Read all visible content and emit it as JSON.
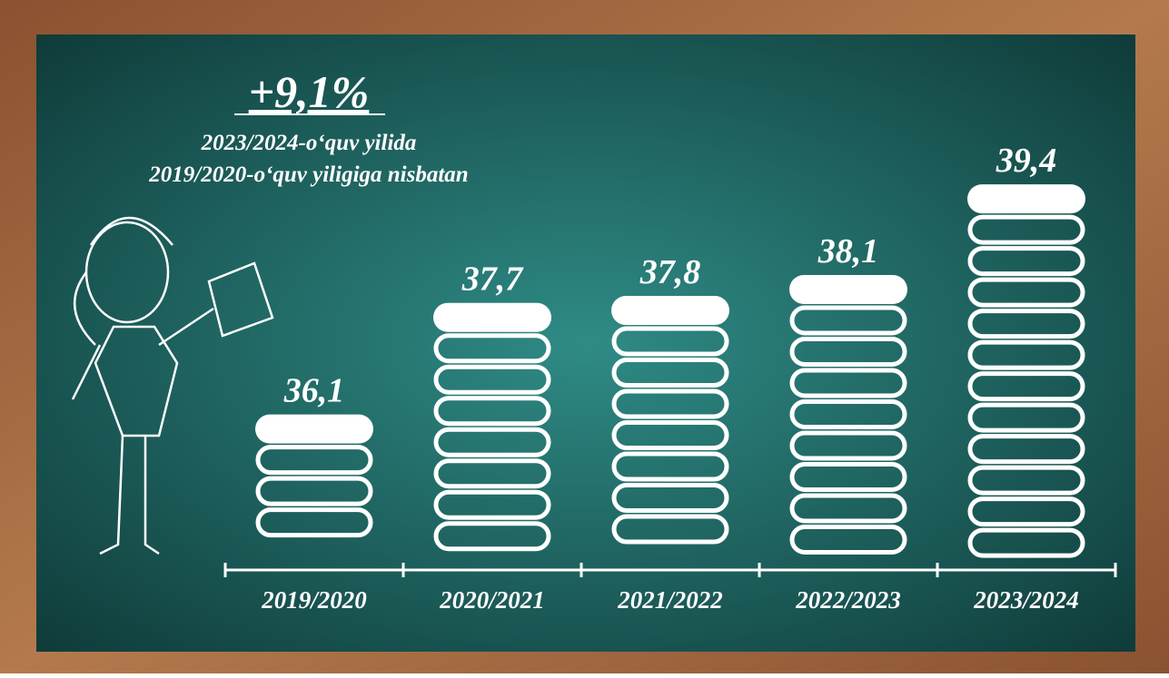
{
  "chart_data": {
    "type": "bar",
    "headline": "+9,1%",
    "subtitle": [
      "2023/2024-o‘quv yilida",
      "2019/2020-o‘quv yiligiga nisbatan"
    ],
    "categories": [
      "2019/2020",
      "2020/2021",
      "2021/2022",
      "2022/2023",
      "2023/2024"
    ],
    "values": [
      36.1,
      37.7,
      37.8,
      38.1,
      39.4
    ],
    "value_labels": [
      "36,1",
      "37,7",
      "37,8",
      "38,1",
      "39,4"
    ],
    "color": "#ffffff",
    "ylim": [
      34,
      40
    ]
  }
}
